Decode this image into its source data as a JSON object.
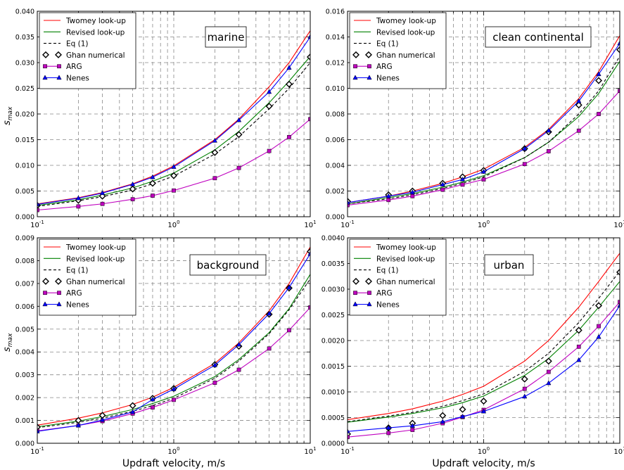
{
  "figure": {
    "xlabel": "Updraft velocity, m/s",
    "ylabel": "s_max"
  },
  "legend_entries": [
    {
      "label": "Twomey look-up",
      "color": "#ff0000",
      "style": "solid",
      "marker": "none"
    },
    {
      "label": "Revised look-up",
      "color": "#008000",
      "style": "solid",
      "marker": "none"
    },
    {
      "label": "Eq (1)",
      "color": "#000000",
      "style": "dashed",
      "marker": "none"
    },
    {
      "label": "Ghan numerical",
      "color": "#000000",
      "style": "none",
      "marker": "diamond"
    },
    {
      "label": "ARG",
      "color": "#bf00bf",
      "style": "solid",
      "marker": "square"
    },
    {
      "label": "Nenes",
      "color": "#0000ff",
      "style": "solid",
      "marker": "triangle"
    }
  ],
  "chart_data": [
    {
      "type": "line",
      "panel_label": "marine",
      "xscale": "log",
      "xlim": [
        0.1,
        10
      ],
      "ylim": [
        0,
        0.04
      ],
      "yticks": [
        "0.000",
        "0.005",
        "0.010",
        "0.015",
        "0.020",
        "0.025",
        "0.030",
        "0.035",
        "0.040"
      ],
      "xticks": [
        "10^-1",
        "10^0",
        "10^1"
      ],
      "grid": true,
      "legend_position": "upper-left",
      "x": [
        0.1,
        0.2,
        0.3,
        0.5,
        0.7,
        1,
        2,
        3,
        5,
        7,
        10
      ],
      "series": [
        {
          "name": "Twomey look-up",
          "values": [
            0.0025,
            0.0037,
            0.0047,
            0.0064,
            0.0079,
            0.0099,
            0.015,
            0.019,
            0.0253,
            0.03,
            0.0362
          ]
        },
        {
          "name": "Revised look-up",
          "values": [
            0.0022,
            0.0033,
            0.0042,
            0.0056,
            0.0069,
            0.0085,
            0.013,
            0.0166,
            0.0222,
            0.0264,
            0.0312
          ]
        },
        {
          "name": "Eq (1)",
          "values": [
            0.002,
            0.0031,
            0.0039,
            0.0052,
            0.0064,
            0.0079,
            0.0122,
            0.0156,
            0.021,
            0.025,
            0.03
          ]
        },
        {
          "name": "Ghan numerical",
          "values": [
            0.0022,
            0.0032,
            0.004,
            0.0054,
            0.0065,
            0.008,
            0.0125,
            0.016,
            0.0215,
            0.0258,
            0.0311
          ]
        },
        {
          "name": "ARG",
          "values": [
            0.0013,
            0.002,
            0.0025,
            0.0034,
            0.0041,
            0.0051,
            0.0075,
            0.0095,
            0.0128,
            0.0155,
            0.019
          ]
        },
        {
          "name": "Nenes",
          "values": [
            0.0024,
            0.0036,
            0.0046,
            0.0063,
            0.0077,
            0.0097,
            0.0148,
            0.0188,
            0.0243,
            0.029,
            0.035
          ]
        }
      ]
    },
    {
      "type": "line",
      "panel_label": "clean continental",
      "xscale": "log",
      "xlim": [
        0.1,
        10
      ],
      "ylim": [
        0,
        0.016
      ],
      "yticks": [
        "0.000",
        "0.002",
        "0.004",
        "0.006",
        "0.008",
        "0.010",
        "0.012",
        "0.014",
        "0.016"
      ],
      "xticks": [
        "10^-1",
        "10^0",
        "10^1"
      ],
      "grid": true,
      "legend_position": "upper-left",
      "x": [
        0.1,
        0.2,
        0.3,
        0.5,
        0.7,
        1,
        2,
        3,
        5,
        7,
        10
      ],
      "series": [
        {
          "name": "Twomey look-up",
          "values": [
            0.0011,
            0.0016,
            0.002,
            0.0026,
            0.0031,
            0.0037,
            0.0054,
            0.0068,
            0.0092,
            0.0113,
            0.0141
          ]
        },
        {
          "name": "Revised look-up",
          "values": [
            0.001,
            0.0015,
            0.0018,
            0.0023,
            0.0027,
            0.0032,
            0.0046,
            0.0058,
            0.0078,
            0.0096,
            0.0121
          ]
        },
        {
          "name": "Eq (1)",
          "values": [
            0.001,
            0.0014,
            0.0017,
            0.0022,
            0.0026,
            0.0031,
            0.0046,
            0.0058,
            0.008,
            0.0098,
            0.0125
          ]
        },
        {
          "name": "Ghan numerical",
          "values": [
            0.0012,
            0.0017,
            0.002,
            0.0026,
            0.0031,
            0.0036,
            0.0053,
            0.0066,
            0.0087,
            0.0106,
            0.013
          ]
        },
        {
          "name": "ARG",
          "values": [
            0.0009,
            0.0013,
            0.0016,
            0.0021,
            0.0025,
            0.0029,
            0.0041,
            0.0051,
            0.0067,
            0.008,
            0.0098
          ]
        },
        {
          "name": "Nenes",
          "values": [
            0.0011,
            0.0016,
            0.0019,
            0.0025,
            0.0029,
            0.0035,
            0.0053,
            0.0067,
            0.009,
            0.0111,
            0.0135
          ]
        }
      ]
    },
    {
      "type": "line",
      "panel_label": "background",
      "xscale": "log",
      "xlim": [
        0.1,
        10
      ],
      "ylim": [
        0,
        0.009
      ],
      "yticks": [
        "0.000",
        "0.001",
        "0.002",
        "0.003",
        "0.004",
        "0.005",
        "0.006",
        "0.007",
        "0.008",
        "0.009"
      ],
      "xticks": [
        "10^-1",
        "10^0",
        "10^1"
      ],
      "grid": true,
      "legend_position": "upper-left",
      "x": [
        0.1,
        0.2,
        0.3,
        0.5,
        0.7,
        1,
        2,
        3,
        5,
        7,
        10
      ],
      "series": [
        {
          "name": "Twomey look-up",
          "values": [
            0.00079,
            0.0011,
            0.00133,
            0.0017,
            0.00202,
            0.00245,
            0.0035,
            0.0044,
            0.0058,
            0.007,
            0.0086
          ]
        },
        {
          "name": "Revised look-up",
          "values": [
            0.00072,
            0.00097,
            0.00117,
            0.00148,
            0.00174,
            0.00206,
            0.00292,
            0.00367,
            0.00485,
            0.0059,
            0.0074
          ]
        },
        {
          "name": "Eq (1)",
          "values": [
            0.00068,
            0.00092,
            0.0011,
            0.0014,
            0.00165,
            0.00197,
            0.00285,
            0.0036,
            0.0048,
            0.00585,
            0.0072
          ]
        },
        {
          "name": "Ghan numerical",
          "values": [
            0.00071,
            0.001,
            0.00122,
            0.00165,
            0.00197,
            0.0024,
            0.00345,
            0.00425,
            0.00565,
            0.0068,
            0.0084
          ]
        },
        {
          "name": "ARG",
          "values": [
            0.00054,
            0.00078,
            0.00097,
            0.0013,
            0.00157,
            0.0019,
            0.00265,
            0.00322,
            0.00415,
            0.00495,
            0.00595
          ]
        },
        {
          "name": "Nenes",
          "values": [
            0.00052,
            0.00078,
            0.00102,
            0.00137,
            0.00192,
            0.00237,
            0.00342,
            0.00432,
            0.00568,
            0.00682,
            0.0083
          ]
        }
      ]
    },
    {
      "type": "line",
      "panel_label": "urban",
      "xscale": "log",
      "xlim": [
        0.1,
        10
      ],
      "ylim": [
        0,
        0.004
      ],
      "yticks": [
        "0.0000",
        "0.0005",
        "0.0010",
        "0.0015",
        "0.0020",
        "0.0025",
        "0.0030",
        "0.0035",
        "0.0040"
      ],
      "xticks": [
        "10^-1",
        "10^0",
        "10^1"
      ],
      "grid": true,
      "legend_position": "upper-left",
      "x": [
        0.1,
        0.2,
        0.3,
        0.5,
        0.7,
        1,
        2,
        3,
        5,
        7,
        10
      ],
      "series": [
        {
          "name": "Twomey look-up",
          "values": [
            0.00046,
            0.00058,
            0.00067,
            0.00082,
            0.00095,
            0.00111,
            0.0016,
            0.002,
            0.00265,
            0.00315,
            0.0037
          ]
        },
        {
          "name": "Revised look-up",
          "values": [
            0.00041,
            0.00051,
            0.00058,
            0.00069,
            0.00079,
            0.00092,
            0.00132,
            0.00165,
            0.0022,
            0.00265,
            0.00315
          ]
        },
        {
          "name": "Eq (1)",
          "values": [
            0.00042,
            0.00053,
            0.0006,
            0.00072,
            0.00083,
            0.00096,
            0.0014,
            0.00175,
            0.00235,
            0.00282,
            0.00335
          ]
        },
        {
          "name": "Ghan numerical",
          "values": [
            0.00018,
            0.0003,
            0.00039,
            0.00054,
            0.00066,
            0.00082,
            0.00125,
            0.0016,
            0.0022,
            0.00268,
            0.00333
          ]
        },
        {
          "name": "ARG",
          "values": [
            0.00012,
            0.0002,
            0.00026,
            0.00039,
            0.00051,
            0.00065,
            0.00106,
            0.00139,
            0.00188,
            0.00228,
            0.00275
          ]
        },
        {
          "name": "Nenes",
          "values": [
            0.00023,
            0.0003,
            0.00034,
            0.00042,
            0.00052,
            0.00062,
            0.00091,
            0.00117,
            0.00162,
            0.00207,
            0.00268
          ]
        }
      ]
    }
  ]
}
